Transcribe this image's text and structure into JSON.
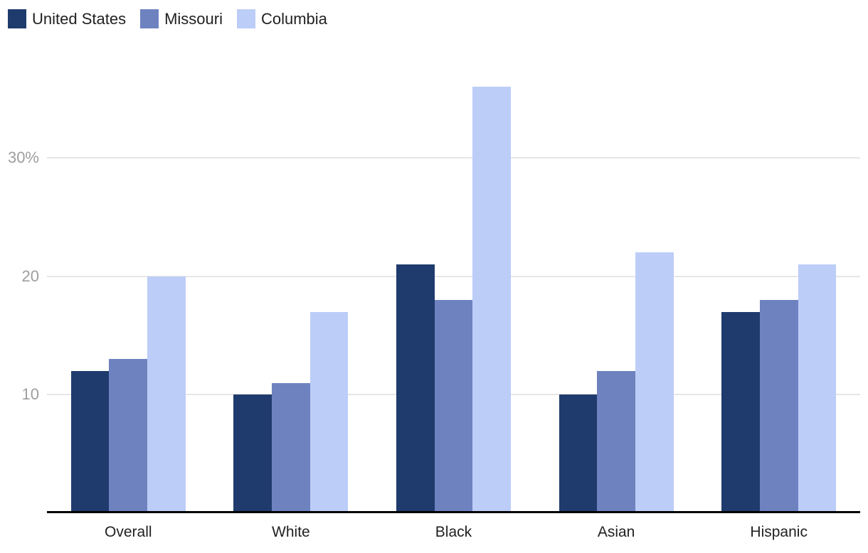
{
  "chart_data": {
    "type": "bar",
    "title": "",
    "categories": [
      "Overall",
      "White",
      "Black",
      "Asian",
      "Hispanic"
    ],
    "series": [
      {
        "name": "United States",
        "color": "#1f3b6d",
        "values": [
          12,
          10,
          21,
          10,
          17
        ]
      },
      {
        "name": "Missouri",
        "color": "#6e82c0",
        "values": [
          13,
          11,
          18,
          12,
          18
        ]
      },
      {
        "name": "Columbia",
        "color": "#bccdf8",
        "values": [
          20,
          17,
          36,
          22,
          21
        ]
      }
    ],
    "xlabel": "",
    "ylabel": "",
    "ylim": [
      0,
      40
    ],
    "yticks": [
      {
        "value": 10,
        "label": "10"
      },
      {
        "value": 20,
        "label": "20"
      },
      {
        "value": 30,
        "label": "30%"
      }
    ],
    "grid": true,
    "legend_position": "top-left"
  },
  "colors": {
    "background": "#ffffff",
    "gridline": "#e7e7e7",
    "axis_line": "#000000",
    "ytick_label": "#9e9e9e",
    "xtick_label": "#212121",
    "legend_text": "#212121"
  }
}
